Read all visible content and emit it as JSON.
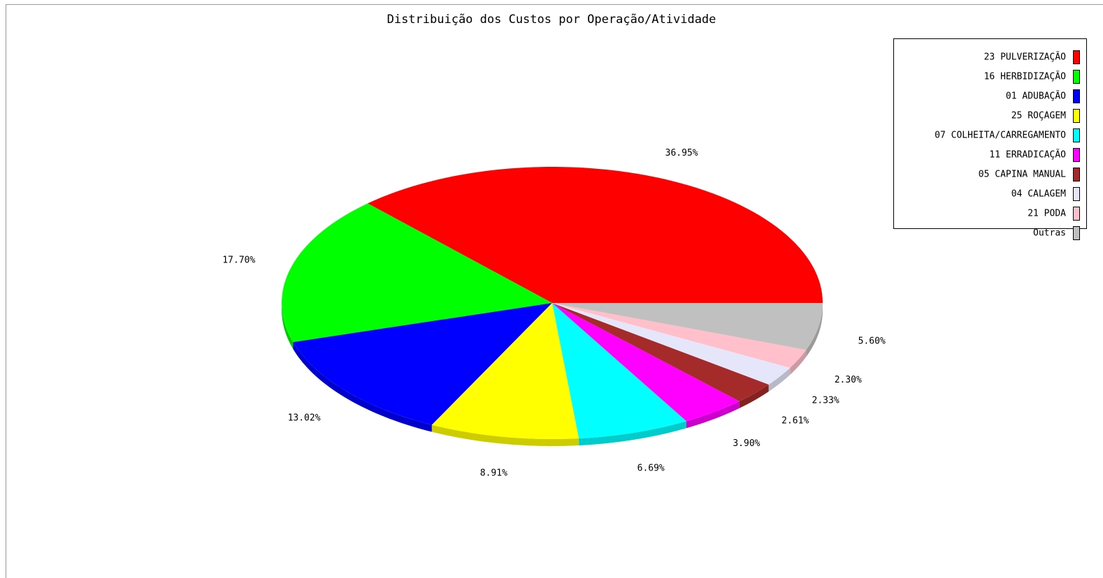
{
  "chart_data": {
    "type": "pie",
    "title": "Distribuição dos Custos por Operação/Atividade",
    "categories": [
      "23 PULVERIZAÇÃO",
      "16 HERBIDIZAÇÃO",
      "01 ADUBAÇÃO",
      "25 ROÇAGEM",
      "07 COLHEITA/CARREGAMENTO",
      "11 ERRADICAÇÃO",
      "05 CAPINA MANUAL",
      "04 CALAGEM",
      "21 PODA",
      "Outras"
    ],
    "values": [
      36.95,
      17.7,
      13.02,
      8.91,
      6.69,
      3.9,
      2.61,
      2.33,
      2.3,
      5.6
    ],
    "value_labels": [
      "36.95%",
      "17.70%",
      "13.02%",
      "8.91%",
      "6.69%",
      "3.90%",
      "2.61%",
      "2.33%",
      "2.30%",
      "5.60%"
    ],
    "colors": [
      "#ff0000",
      "#00ff00",
      "#0000ff",
      "#ffff00",
      "#00ffff",
      "#ff00ff",
      "#a52a2a",
      "#e6e6fa",
      "#ffc0cb",
      "#c0c0c0"
    ],
    "legend": "top-right"
  }
}
